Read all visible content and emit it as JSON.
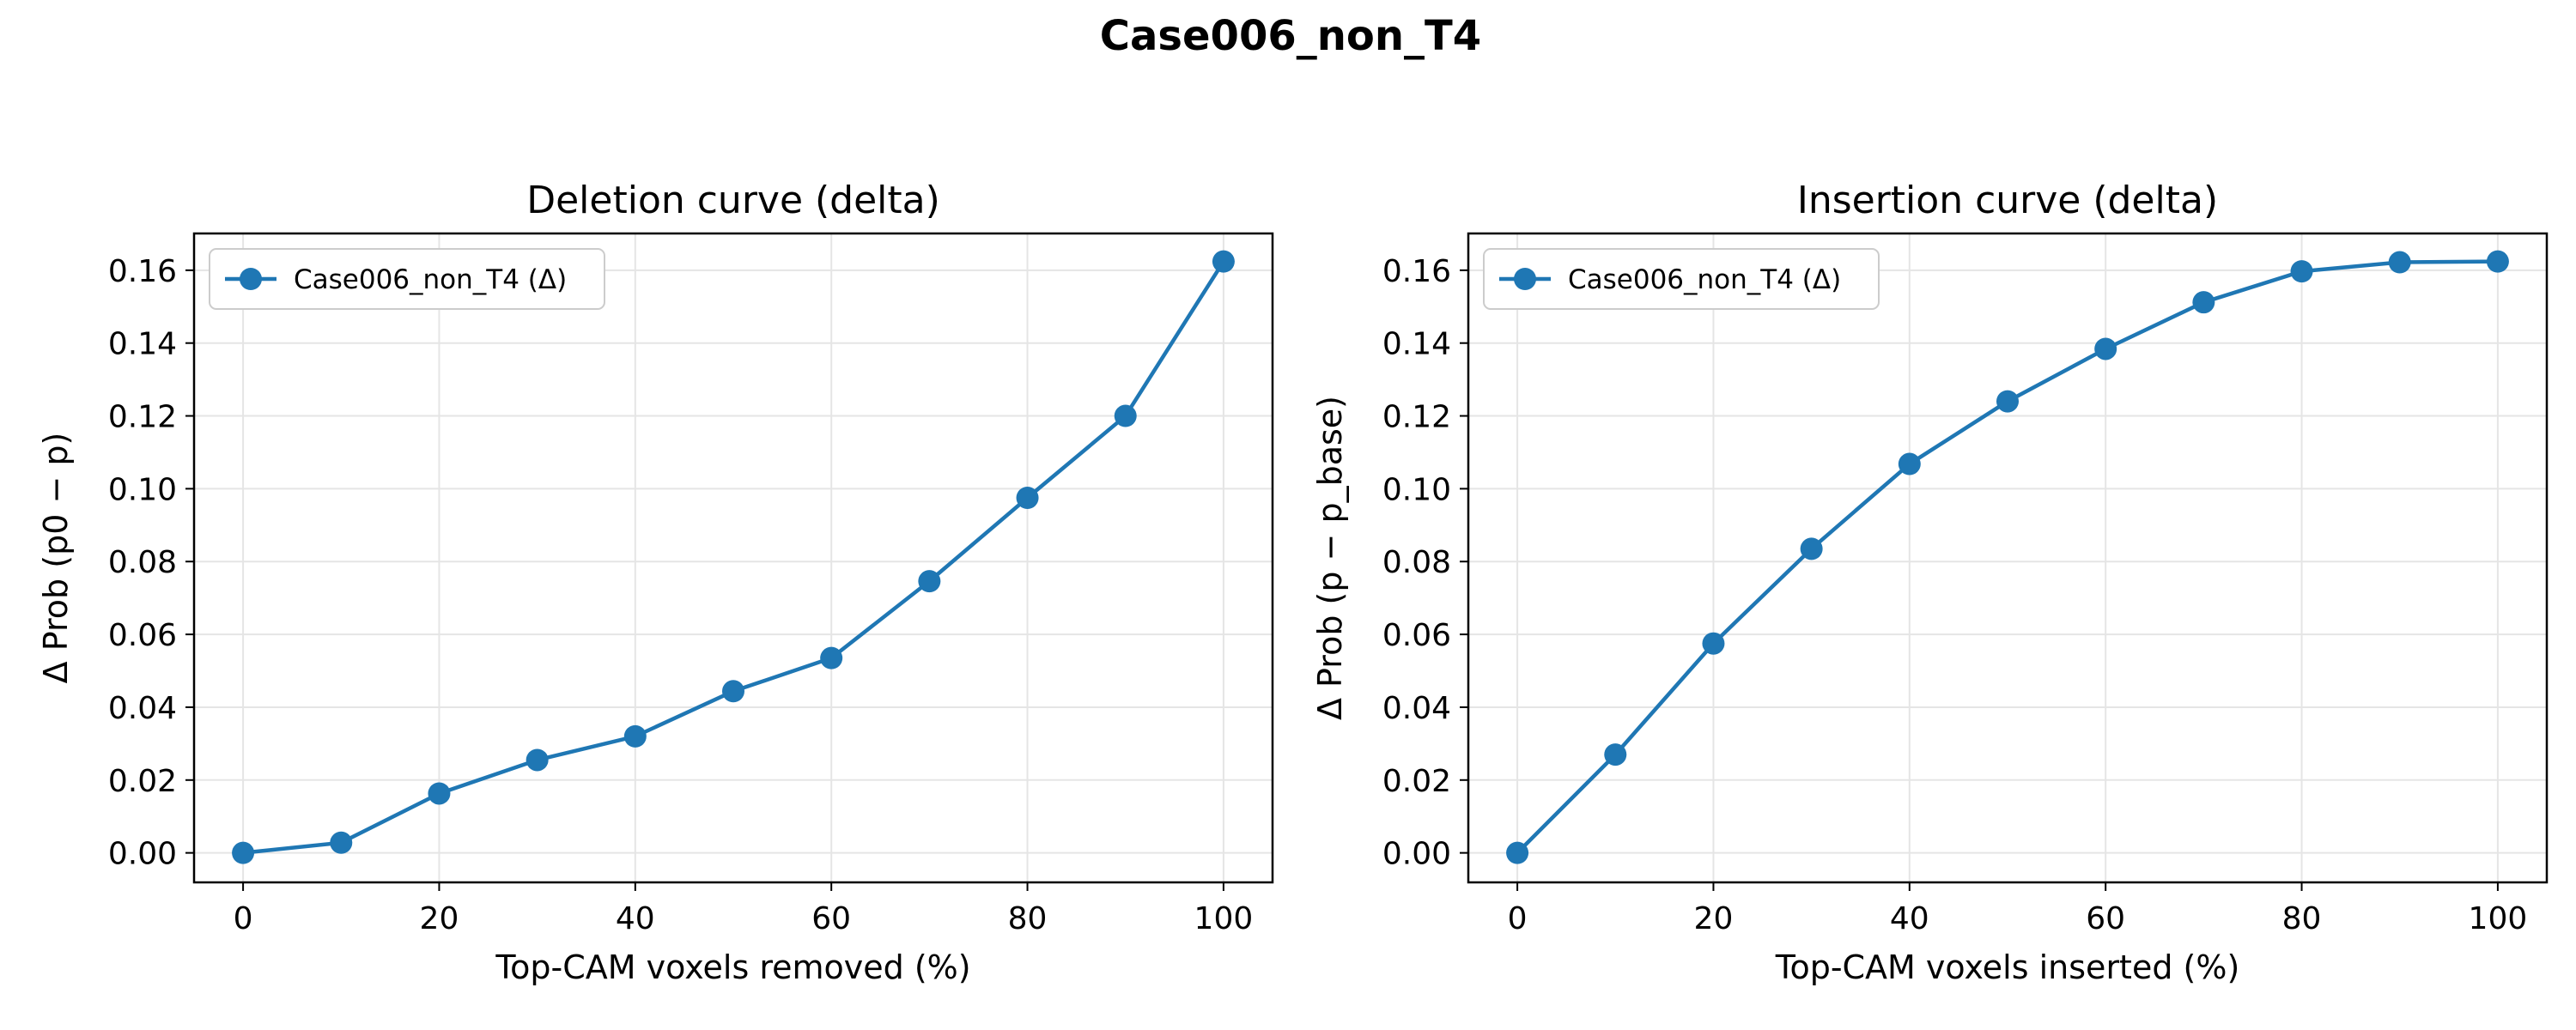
{
  "figure": {
    "suptitle": "Case006_non_T4"
  },
  "colors": {
    "series": "#1f77b4",
    "grid": "#e5e5e5",
    "axes": "#000000",
    "legend_border": "#cccccc"
  },
  "chart_data": [
    {
      "type": "line",
      "title": "Deletion curve (delta)",
      "xlabel": "Top-CAM voxels removed (%)",
      "ylabel": "Δ Prob (p0 − p)",
      "xlim": [
        -5,
        105
      ],
      "ylim": [
        -0.0081,
        0.1701
      ],
      "xticks": [
        0,
        20,
        40,
        60,
        80,
        100
      ],
      "yticks": [
        0.0,
        0.02,
        0.04,
        0.06,
        0.08,
        0.1,
        0.12,
        0.14,
        0.16
      ],
      "grid": true,
      "legend": "upper-left",
      "series": [
        {
          "name": "Case006_non_T4 (Δ)",
          "x": [
            0,
            10,
            20,
            30,
            40,
            50,
            60,
            70,
            80,
            90,
            100
          ],
          "y": [
            0.0,
            0.0028,
            0.0163,
            0.0255,
            0.032,
            0.0444,
            0.0535,
            0.0746,
            0.0975,
            0.12,
            0.1624
          ]
        }
      ]
    },
    {
      "type": "line",
      "title": "Insertion curve (delta)",
      "xlabel": "Top-CAM voxels inserted (%)",
      "ylabel": "Δ Prob (p − p_base)",
      "xlim": [
        -5,
        105
      ],
      "ylim": [
        -0.0081,
        0.1701
      ],
      "xticks": [
        0,
        20,
        40,
        60,
        80,
        100
      ],
      "yticks": [
        0.0,
        0.02,
        0.04,
        0.06,
        0.08,
        0.1,
        0.12,
        0.14,
        0.16
      ],
      "grid": true,
      "legend": "upper-left",
      "series": [
        {
          "name": "Case006_non_T4 (Δ)",
          "x": [
            0,
            10,
            20,
            30,
            40,
            50,
            60,
            70,
            80,
            90,
            100
          ],
          "y": [
            0.0,
            0.027,
            0.0575,
            0.0835,
            0.1068,
            0.124,
            0.1384,
            0.1512,
            0.1597,
            0.1622,
            0.1624
          ]
        }
      ]
    }
  ]
}
